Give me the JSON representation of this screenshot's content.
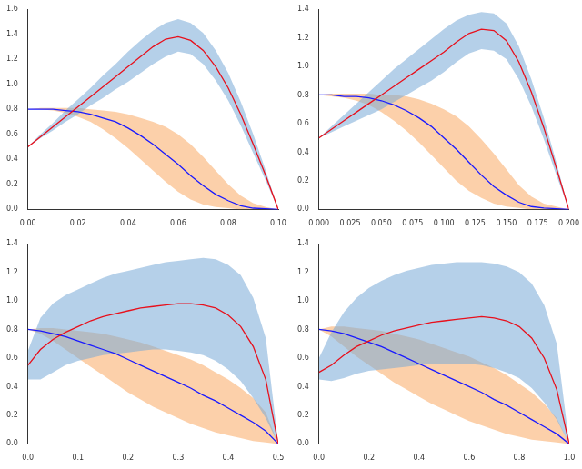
{
  "chart_data": [
    {
      "type": "line",
      "grid": false,
      "x": [
        0,
        0.005,
        0.01,
        0.015,
        0.02,
        0.025,
        0.03,
        0.035,
        0.04,
        0.045,
        0.05,
        0.055,
        0.06,
        0.065,
        0.07,
        0.075,
        0.08,
        0.085,
        0.09,
        0.095,
        0.1
      ],
      "xlim": [
        0,
        0.1
      ],
      "xticks": [
        {
          "value": 0,
          "label": "0.00"
        },
        {
          "value": 0.02,
          "label": "0.02"
        },
        {
          "value": 0.04,
          "label": "0.04"
        },
        {
          "value": 0.06,
          "label": "0.06"
        },
        {
          "value": 0.08,
          "label": "0.08"
        },
        {
          "value": 0.1,
          "label": "0.10"
        }
      ],
      "ylim": [
        0,
        1.6
      ],
      "yticks": [
        {
          "value": 0,
          "label": "0.0"
        },
        0.2,
        0.4,
        0.6,
        0.8,
        {
          "value": 1,
          "label": "1.0"
        },
        1.2,
        1.4,
        1.6
      ],
      "series": [
        {
          "color": "#e8101c",
          "band_color": "rgba(120,170,215,0.55)",
          "values": [
            0.5,
            0.58,
            0.66,
            0.74,
            0.82,
            0.9,
            0.98,
            1.06,
            1.14,
            1.22,
            1.3,
            1.36,
            1.38,
            1.35,
            1.27,
            1.14,
            0.97,
            0.76,
            0.52,
            0.27,
            0
          ],
          "lower": [
            0.5,
            0.57,
            0.63,
            0.7,
            0.76,
            0.83,
            0.89,
            0.96,
            1.02,
            1.09,
            1.16,
            1.22,
            1.26,
            1.24,
            1.16,
            1.03,
            0.87,
            0.67,
            0.45,
            0.23,
            0
          ],
          "upper": [
            0.5,
            0.6,
            0.69,
            0.79,
            0.88,
            0.97,
            1.07,
            1.16,
            1.26,
            1.35,
            1.43,
            1.49,
            1.52,
            1.49,
            1.41,
            1.27,
            1.09,
            0.86,
            0.6,
            0.31,
            0
          ]
        },
        {
          "color": "#1a1aff",
          "band_color": "rgba(250,170,100,0.55)",
          "values": [
            0.8,
            0.8,
            0.8,
            0.79,
            0.78,
            0.76,
            0.73,
            0.7,
            0.65,
            0.59,
            0.52,
            0.44,
            0.36,
            0.27,
            0.19,
            0.12,
            0.07,
            0.03,
            0.01,
            0.005,
            0
          ],
          "lower": [
            0.8,
            0.8,
            0.79,
            0.77,
            0.74,
            0.7,
            0.64,
            0.57,
            0.49,
            0.4,
            0.31,
            0.22,
            0.14,
            0.08,
            0.04,
            0.02,
            0.01,
            0,
            0,
            0,
            0
          ],
          "upper": [
            0.8,
            0.81,
            0.81,
            0.81,
            0.81,
            0.8,
            0.79,
            0.78,
            0.76,
            0.73,
            0.7,
            0.66,
            0.6,
            0.52,
            0.42,
            0.31,
            0.2,
            0.11,
            0.05,
            0.02,
            0
          ]
        }
      ]
    },
    {
      "type": "line",
      "grid": false,
      "x": [
        0,
        0.01,
        0.02,
        0.03,
        0.04,
        0.05,
        0.06,
        0.07,
        0.08,
        0.09,
        0.1,
        0.11,
        0.12,
        0.13,
        0.14,
        0.15,
        0.16,
        0.17,
        0.18,
        0.19,
        0.2
      ],
      "xlim": [
        0,
        0.2
      ],
      "xticks": [
        {
          "value": 0,
          "label": "0.000"
        },
        {
          "value": 0.025,
          "label": "0.025"
        },
        {
          "value": 0.05,
          "label": "0.050"
        },
        {
          "value": 0.075,
          "label": "0.075"
        },
        {
          "value": 0.1,
          "label": "0.100"
        },
        {
          "value": 0.125,
          "label": "0.125"
        },
        {
          "value": 0.15,
          "label": "0.150"
        },
        {
          "value": 0.175,
          "label": "0.175"
        },
        {
          "value": 0.2,
          "label": "0.200"
        }
      ],
      "ylim": [
        0,
        1.4
      ],
      "yticks": [
        {
          "value": 0,
          "label": "0.0"
        },
        0.2,
        0.4,
        0.6,
        0.8,
        {
          "value": 1,
          "label": "1.0"
        },
        1.2,
        1.4
      ],
      "series": [
        {
          "color": "#e8101c",
          "band_color": "rgba(120,170,215,0.55)",
          "values": [
            0.5,
            0.56,
            0.62,
            0.68,
            0.74,
            0.8,
            0.86,
            0.92,
            0.98,
            1.04,
            1.1,
            1.17,
            1.23,
            1.26,
            1.25,
            1.18,
            1.03,
            0.82,
            0.57,
            0.29,
            0
          ],
          "lower": [
            0.5,
            0.54,
            0.58,
            0.62,
            0.66,
            0.7,
            0.75,
            0.8,
            0.85,
            0.9,
            0.96,
            1.03,
            1.09,
            1.12,
            1.11,
            1.05,
            0.91,
            0.72,
            0.49,
            0.24,
            0
          ],
          "upper": [
            0.5,
            0.58,
            0.66,
            0.74,
            0.82,
            0.9,
            0.98,
            1.05,
            1.12,
            1.19,
            1.26,
            1.32,
            1.36,
            1.38,
            1.37,
            1.3,
            1.14,
            0.91,
            0.64,
            0.33,
            0
          ]
        },
        {
          "color": "#1a1aff",
          "band_color": "rgba(250,170,100,0.55)",
          "values": [
            0.8,
            0.8,
            0.79,
            0.79,
            0.78,
            0.76,
            0.73,
            0.69,
            0.64,
            0.58,
            0.5,
            0.42,
            0.33,
            0.24,
            0.16,
            0.1,
            0.05,
            0.02,
            0.01,
            0.005,
            0
          ],
          "lower": [
            0.8,
            0.79,
            0.78,
            0.76,
            0.73,
            0.68,
            0.62,
            0.55,
            0.47,
            0.38,
            0.29,
            0.2,
            0.13,
            0.08,
            0.04,
            0.02,
            0.01,
            0,
            0,
            0,
            0
          ],
          "upper": [
            0.8,
            0.81,
            0.81,
            0.81,
            0.81,
            0.8,
            0.8,
            0.79,
            0.77,
            0.74,
            0.7,
            0.65,
            0.58,
            0.49,
            0.39,
            0.28,
            0.17,
            0.09,
            0.04,
            0.02,
            0
          ]
        }
      ]
    },
    {
      "type": "line",
      "grid": false,
      "x": [
        0,
        0.025,
        0.05,
        0.075,
        0.1,
        0.125,
        0.15,
        0.175,
        0.2,
        0.225,
        0.25,
        0.275,
        0.3,
        0.325,
        0.35,
        0.375,
        0.4,
        0.425,
        0.45,
        0.475,
        0.5
      ],
      "xlim": [
        0,
        0.5
      ],
      "xticks": [
        {
          "value": 0,
          "label": "0.0"
        },
        0.1,
        0.2,
        0.3,
        0.4,
        0.5
      ],
      "ylim": [
        0,
        1.4
      ],
      "yticks": [
        {
          "value": 0,
          "label": "0.0"
        },
        0.2,
        0.4,
        0.6,
        0.8,
        {
          "value": 1,
          "label": "1.0"
        },
        1.2,
        1.4
      ],
      "series": [
        {
          "color": "#e8101c",
          "band_color": "rgba(120,170,215,0.55)",
          "values": [
            0.55,
            0.66,
            0.73,
            0.78,
            0.82,
            0.86,
            0.89,
            0.91,
            0.93,
            0.95,
            0.96,
            0.97,
            0.98,
            0.98,
            0.97,
            0.95,
            0.9,
            0.82,
            0.68,
            0.45,
            0
          ],
          "lower": [
            0.45,
            0.45,
            0.5,
            0.55,
            0.58,
            0.6,
            0.62,
            0.63,
            0.64,
            0.65,
            0.66,
            0.66,
            0.65,
            0.64,
            0.62,
            0.58,
            0.52,
            0.44,
            0.32,
            0.18,
            0
          ],
          "upper": [
            0.65,
            0.88,
            0.98,
            1.04,
            1.08,
            1.12,
            1.16,
            1.19,
            1.21,
            1.23,
            1.25,
            1.27,
            1.28,
            1.29,
            1.3,
            1.29,
            1.25,
            1.18,
            1.02,
            0.74,
            0
          ]
        },
        {
          "color": "#1a1aff",
          "band_color": "rgba(250,170,100,0.55)",
          "values": [
            0.8,
            0.79,
            0.77,
            0.75,
            0.72,
            0.69,
            0.66,
            0.63,
            0.59,
            0.55,
            0.51,
            0.47,
            0.43,
            0.39,
            0.34,
            0.3,
            0.25,
            0.2,
            0.15,
            0.09,
            0
          ],
          "lower": [
            0.8,
            0.77,
            0.72,
            0.66,
            0.6,
            0.54,
            0.48,
            0.42,
            0.36,
            0.31,
            0.26,
            0.22,
            0.18,
            0.14,
            0.11,
            0.08,
            0.06,
            0.04,
            0.02,
            0.01,
            0
          ],
          "upper": [
            0.8,
            0.81,
            0.81,
            0.8,
            0.79,
            0.78,
            0.77,
            0.75,
            0.73,
            0.71,
            0.68,
            0.65,
            0.62,
            0.59,
            0.55,
            0.5,
            0.45,
            0.39,
            0.32,
            0.22,
            0
          ]
        }
      ]
    },
    {
      "type": "line",
      "grid": false,
      "x": [
        0,
        0.05,
        0.1,
        0.15,
        0.2,
        0.25,
        0.3,
        0.35,
        0.4,
        0.45,
        0.5,
        0.55,
        0.6,
        0.65,
        0.7,
        0.75,
        0.8,
        0.85,
        0.9,
        0.95,
        1
      ],
      "xlim": [
        0,
        1
      ],
      "xticks": [
        {
          "value": 0,
          "label": "0.0"
        },
        0.2,
        0.4,
        0.6,
        0.8,
        {
          "value": 1,
          "label": "1.0"
        }
      ],
      "ylim": [
        0,
        1.4
      ],
      "yticks": [
        {
          "value": 0,
          "label": "0.0"
        },
        0.2,
        0.4,
        0.6,
        0.8,
        {
          "value": 1,
          "label": "1.0"
        },
        1.2,
        1.4
      ],
      "series": [
        {
          "color": "#e8101c",
          "band_color": "rgba(120,170,215,0.55)",
          "values": [
            0.5,
            0.55,
            0.62,
            0.68,
            0.72,
            0.76,
            0.79,
            0.81,
            0.83,
            0.85,
            0.86,
            0.87,
            0.88,
            0.89,
            0.88,
            0.86,
            0.82,
            0.74,
            0.6,
            0.38,
            0
          ],
          "lower": [
            0.45,
            0.44,
            0.46,
            0.49,
            0.51,
            0.52,
            0.53,
            0.54,
            0.55,
            0.56,
            0.56,
            0.56,
            0.56,
            0.55,
            0.53,
            0.5,
            0.46,
            0.39,
            0.29,
            0.17,
            0
          ],
          "upper": [
            0.6,
            0.78,
            0.92,
            1.02,
            1.09,
            1.14,
            1.18,
            1.21,
            1.23,
            1.25,
            1.26,
            1.27,
            1.27,
            1.27,
            1.26,
            1.24,
            1.2,
            1.12,
            0.97,
            0.7,
            0
          ]
        },
        {
          "color": "#1a1aff",
          "band_color": "rgba(250,170,100,0.55)",
          "values": [
            0.8,
            0.79,
            0.77,
            0.74,
            0.71,
            0.68,
            0.64,
            0.6,
            0.56,
            0.52,
            0.48,
            0.44,
            0.4,
            0.36,
            0.31,
            0.27,
            0.22,
            0.17,
            0.12,
            0.07,
            0
          ],
          "lower": [
            0.8,
            0.75,
            0.68,
            0.61,
            0.55,
            0.49,
            0.43,
            0.38,
            0.33,
            0.28,
            0.24,
            0.2,
            0.16,
            0.13,
            0.1,
            0.07,
            0.05,
            0.03,
            0.02,
            0.01,
            0
          ],
          "upper": [
            0.8,
            0.82,
            0.82,
            0.81,
            0.8,
            0.79,
            0.77,
            0.75,
            0.73,
            0.7,
            0.67,
            0.64,
            0.61,
            0.57,
            0.53,
            0.48,
            0.42,
            0.36,
            0.28,
            0.18,
            0
          ]
        }
      ]
    }
  ]
}
